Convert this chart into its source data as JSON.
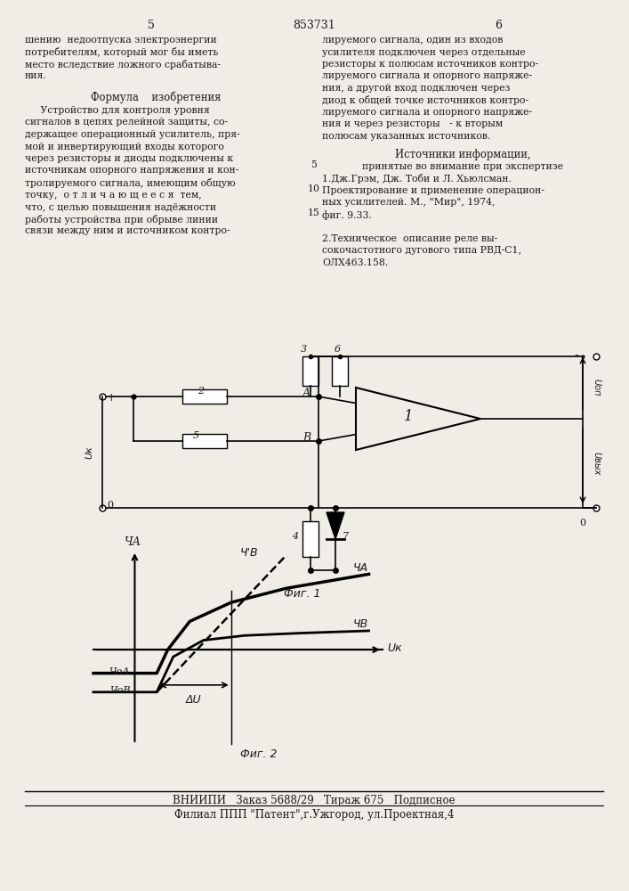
{
  "page_color": "#f0ede6",
  "text_color": "#1a1a1a",
  "page_num_left": "5",
  "page_num_center": "853731",
  "page_num_right": "6",
  "left_col_top": [
    "шению  недоотпуска электроэнергии",
    "потребителям, который мог бы иметь",
    "место вследствие ложного срабатыва-",
    "ния."
  ],
  "formula_title": "Формула    изобретения",
  "left_col_body": [
    "     Устройство для контроля уровня",
    "сигналов в цепях релейной защиты, со-",
    "держащее операционный усилитель, пря-",
    "мой и инвертирующий входы которого",
    "через резисторы и диоды подключены к",
    "источникам опорного напряжения и кон-",
    "тролируемого сигнала, имеющим общую",
    "точку,  о т л и ч а ю щ е е с я  тем,",
    "что, с целью повышения надёжности",
    "работы устройства при обрыве линии",
    "связи между ним и источником контро-"
  ],
  "right_col_top": [
    "лируемого сигнала, один из входов",
    "усилителя подключен через отдельные",
    "резисторы к полюсам источников контро-",
    "лируемого сигнала и опорного напряже-",
    "ния, а другой вход подключен через",
    "диод к общей точке источников контро-",
    "лируемого сигнала и опорного напряже-",
    "ния и через резисторы   - к вторым",
    "полюсам указанных источников."
  ],
  "sources_title": "Источники информации,",
  "sources_subtitle": "принятые во внимание при экспертизе",
  "sources_body": [
    "1.Дж.Грэм, Дж. Тоби и Л. Хьюлсман.",
    "Проектирование и применение операцион-",
    "ных усилителей. М., \"Мир\", 1974,",
    "фиг. 9.33.",
    "",
    "2.Техническое  описание реле вы-",
    "сокочастотного дугового типа РВД-С1,",
    "ОЛХ463.158."
  ],
  "footer1": "ВНИИПИ   Заказ 5688/29   Тираж 675   Подписное",
  "footer2": "Филиал ППП \"Патент\",г.Ужгород, ул.Проектная,4",
  "fig1_label": "Фиг. 1",
  "fig2_label": "Фиг. 2"
}
